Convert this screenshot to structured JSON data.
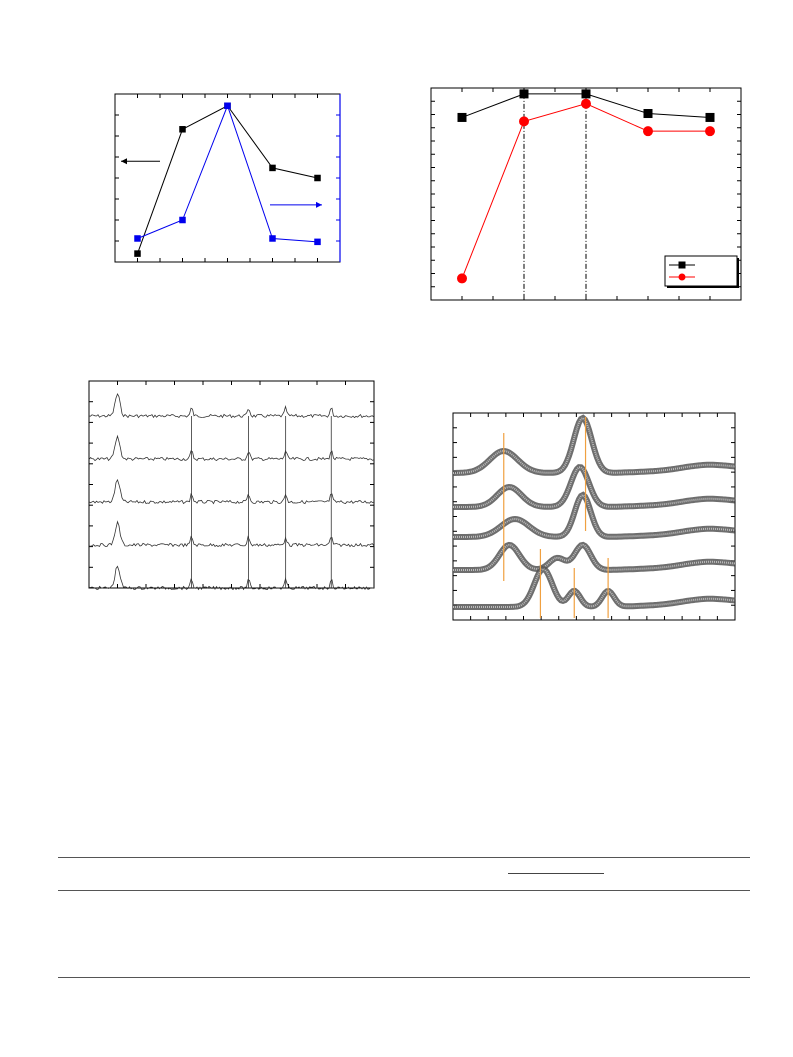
{
  "figures": {
    "top_left": {
      "chart_data": {
        "type": "line",
        "x": [
          1,
          2,
          3,
          4,
          5
        ],
        "series": [
          {
            "color": "#000000",
            "marker": "square",
            "axis": "left",
            "values": [
              0.05,
              0.79,
              0.93,
              0.56,
              0.5
            ]
          },
          {
            "color": "#0000ee",
            "marker": "square",
            "axis": "right",
            "values": [
              0.14,
              0.25,
              0.93,
              0.14,
              0.12
            ]
          }
        ],
        "arrows": [
          {
            "direction": "left",
            "color": "#000000",
            "y": 0.6
          },
          {
            "direction": "right",
            "color": "#0000ee",
            "y": 0.34
          }
        ],
        "xlim": [
          0.5,
          5.5
        ],
        "ylim": [
          0,
          1
        ],
        "right_axis_color": "#0000ee"
      }
    },
    "top_right": {
      "chart_data": {
        "type": "line",
        "x": [
          1,
          2,
          3,
          4,
          5
        ],
        "series": [
          {
            "color": "#000000",
            "marker": "square",
            "values": [
              0.88,
              1.0,
              1.0,
              0.9,
              0.88
            ]
          },
          {
            "color": "#ff0000",
            "marker": "circle",
            "values": [
              0.06,
              0.86,
              0.95,
              0.81,
              0.81
            ]
          }
        ],
        "vlines": [
          2,
          3
        ],
        "legend": "bottom-right",
        "xlim": [
          0.5,
          5.5
        ],
        "ylim": [
          -0.05,
          1.03
        ]
      }
    },
    "bottom_left": {
      "chart_data": {
        "type": "line",
        "trace_count": 5,
        "peak_positions": [
          0.1,
          0.36,
          0.56,
          0.69,
          0.85
        ],
        "color": "#333333"
      }
    },
    "bottom_right": {
      "chart_data": {
        "type": "line",
        "trace_count": 5,
        "marker_color": "#555555",
        "guide_color": "#f0a040",
        "guide_positions": [
          0.18,
          0.31,
          0.43,
          0.47,
          0.55
        ]
      }
    }
  },
  "table": {
    "rules": 3
  }
}
